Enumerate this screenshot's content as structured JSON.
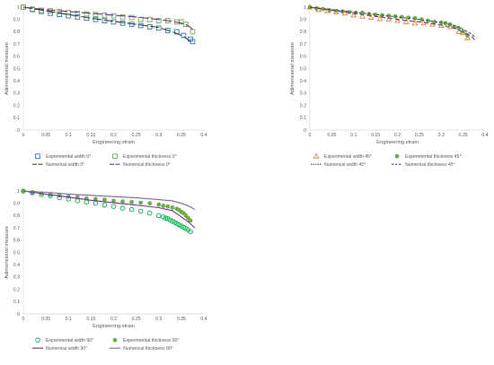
{
  "chart_data": [
    {
      "type": "scatter",
      "xlabel": "Engineering strain",
      "ylabel": "Adimensional measure",
      "xlim": [
        0,
        0.4
      ],
      "ylim": [
        0,
        1
      ],
      "xticks": [
        "0",
        "0.05",
        "0.1",
        "0.15",
        "0.2",
        "0.25",
        "0.3",
        "0.35",
        "0.4"
      ],
      "yticks": [
        "0",
        "0.1",
        "0.2",
        "0.3",
        "0.4",
        "0.5",
        "0.6",
        "0.7",
        "0.8",
        "0.9",
        "1"
      ],
      "grid": false,
      "legend_position": "bottom",
      "series": [
        {
          "name": "Experimental width 0°",
          "kind": "marker",
          "marker": "square",
          "color": "#2E75B6",
          "x": [
            0,
            0.02,
            0.04,
            0.06,
            0.08,
            0.1,
            0.12,
            0.14,
            0.16,
            0.18,
            0.2,
            0.22,
            0.24,
            0.26,
            0.28,
            0.3,
            0.32,
            0.34,
            0.355,
            0.37,
            0.375
          ],
          "y": [
            1,
            0.98,
            0.965,
            0.95,
            0.94,
            0.93,
            0.92,
            0.91,
            0.9,
            0.89,
            0.88,
            0.87,
            0.86,
            0.85,
            0.84,
            0.83,
            0.81,
            0.8,
            0.77,
            0.74,
            0.72
          ]
        },
        {
          "name": "Experimental thickness 0°",
          "kind": "marker",
          "marker": "square",
          "color": "#70AD47",
          "x": [
            0,
            0.02,
            0.04,
            0.06,
            0.08,
            0.1,
            0.12,
            0.14,
            0.16,
            0.18,
            0.2,
            0.22,
            0.24,
            0.26,
            0.28,
            0.3,
            0.32,
            0.34,
            0.35,
            0.36,
            0.375
          ],
          "y": [
            1,
            0.985,
            0.975,
            0.97,
            0.965,
            0.955,
            0.95,
            0.945,
            0.94,
            0.935,
            0.93,
            0.92,
            0.915,
            0.9,
            0.9,
            0.89,
            0.89,
            0.88,
            0.88,
            0.86,
            0.8
          ]
        },
        {
          "name": "Numerical width 0°",
          "kind": "line",
          "dash": "10 3",
          "color": "#404040",
          "x": [
            0,
            0.05,
            0.1,
            0.15,
            0.2,
            0.25,
            0.3,
            0.33,
            0.35,
            0.36,
            0.37
          ],
          "y": [
            1,
            0.97,
            0.94,
            0.91,
            0.885,
            0.86,
            0.835,
            0.8,
            0.77,
            0.75,
            0.72
          ]
        },
        {
          "name": "Numerical thickness 0°",
          "kind": "line",
          "dash": "10 3",
          "color": "#7030A0",
          "x": [
            0,
            0.05,
            0.1,
            0.15,
            0.2,
            0.25,
            0.3,
            0.33,
            0.35,
            0.365,
            0.375
          ],
          "y": [
            1,
            0.98,
            0.965,
            0.95,
            0.935,
            0.92,
            0.9,
            0.885,
            0.87,
            0.85,
            0.82
          ]
        }
      ],
      "legend_layout": [
        [
          0,
          1
        ],
        [
          2,
          3
        ]
      ]
    },
    {
      "type": "scatter",
      "xlabel": "Engineering strain",
      "ylabel": "Adimensional measure",
      "xlim": [
        0,
        0.4
      ],
      "ylim": [
        0,
        1
      ],
      "xticks": [
        "0",
        "0.05",
        "0.1",
        "0.15",
        "0.2",
        "0.25",
        "0.3",
        "0.35",
        "0.4"
      ],
      "yticks": [
        "0",
        "0.1",
        "0.2",
        "0.3",
        "0.4",
        "0.5",
        "0.6",
        "0.7",
        "0.8",
        "0.9",
        "1"
      ],
      "grid": false,
      "legend_position": "bottom",
      "series": [
        {
          "name": "Experimental width 45°",
          "kind": "marker",
          "marker": "triangle",
          "color": "#ED7D31",
          "x": [
            0,
            0.02,
            0.04,
            0.06,
            0.08,
            0.1,
            0.12,
            0.14,
            0.16,
            0.18,
            0.2,
            0.22,
            0.24,
            0.26,
            0.28,
            0.3,
            0.32,
            0.34,
            0.35,
            0.36
          ],
          "y": [
            1,
            0.98,
            0.97,
            0.96,
            0.95,
            0.935,
            0.925,
            0.915,
            0.905,
            0.9,
            0.89,
            0.88,
            0.87,
            0.87,
            0.86,
            0.85,
            0.84,
            0.8,
            0.79,
            0.75
          ]
        },
        {
          "name": "Experimental thickness 45°",
          "kind": "marker",
          "marker": "circle-filled",
          "color": "#70AD47",
          "x": [
            0,
            0.015,
            0.03,
            0.045,
            0.06,
            0.075,
            0.09,
            0.105,
            0.12,
            0.135,
            0.15,
            0.165,
            0.18,
            0.195,
            0.21,
            0.225,
            0.24,
            0.255,
            0.27,
            0.285,
            0.3,
            0.31,
            0.32,
            0.33,
            0.34,
            0.35,
            0.36
          ],
          "y": [
            1,
            0.99,
            0.985,
            0.975,
            0.97,
            0.965,
            0.96,
            0.955,
            0.955,
            0.945,
            0.94,
            0.935,
            0.93,
            0.925,
            0.92,
            0.915,
            0.91,
            0.9,
            0.89,
            0.88,
            0.875,
            0.87,
            0.86,
            0.84,
            0.83,
            0.8,
            0.77
          ]
        },
        {
          "name": "Numerical width 45°",
          "kind": "line",
          "dash": "3 2",
          "color": "#44546A",
          "x": [
            0,
            0.05,
            0.1,
            0.15,
            0.2,
            0.25,
            0.3,
            0.33,
            0.35,
            0.37,
            0.38
          ],
          "y": [
            1,
            0.98,
            0.96,
            0.94,
            0.92,
            0.9,
            0.875,
            0.85,
            0.82,
            0.78,
            0.75
          ]
        },
        {
          "name": "Numerical thickness 45°",
          "kind": "line",
          "dash": "5 3",
          "color": "#7030A0",
          "x": [
            0,
            0.05,
            0.1,
            0.15,
            0.2,
            0.25,
            0.3,
            0.33,
            0.35,
            0.37,
            0.38
          ],
          "y": [
            1,
            0.975,
            0.95,
            0.925,
            0.9,
            0.88,
            0.855,
            0.83,
            0.8,
            0.76,
            0.72
          ]
        }
      ],
      "legend_layout": [
        [
          0,
          1
        ],
        [
          2,
          3
        ]
      ]
    },
    {
      "type": "scatter",
      "xlabel": "Engineering strain",
      "ylabel": "Adimensional measure",
      "xlim": [
        0,
        0.4
      ],
      "ylim": [
        0,
        1
      ],
      "xticks": [
        "0",
        "0.05",
        "0.1",
        "0.15",
        "0.2",
        "0.25",
        "0.3",
        "0.35",
        "0.4"
      ],
      "yticks": [
        "0",
        "0.1",
        "0.2",
        "0.3",
        "0.4",
        "0.5",
        "0.6",
        "0.7",
        "0.8",
        "0.9",
        "1"
      ],
      "grid": false,
      "legend_position": "bottom",
      "series": [
        {
          "name": "Experimental width 90°",
          "kind": "marker",
          "marker": "circle-open",
          "color": "#00B050",
          "x": [
            0,
            0.02,
            0.04,
            0.06,
            0.08,
            0.1,
            0.12,
            0.14,
            0.16,
            0.18,
            0.2,
            0.22,
            0.24,
            0.26,
            0.28,
            0.3,
            0.31,
            0.315,
            0.32,
            0.325,
            0.33,
            0.335,
            0.34,
            0.345,
            0.35,
            0.355,
            0.36,
            0.365,
            0.37
          ],
          "y": [
            1,
            0.985,
            0.97,
            0.96,
            0.945,
            0.935,
            0.92,
            0.91,
            0.9,
            0.885,
            0.875,
            0.86,
            0.85,
            0.835,
            0.82,
            0.8,
            0.79,
            0.78,
            0.775,
            0.765,
            0.755,
            0.745,
            0.735,
            0.725,
            0.715,
            0.705,
            0.695,
            0.685,
            0.67
          ]
        },
        {
          "name": "Experimental thickness 90°",
          "kind": "marker",
          "marker": "circle-filled",
          "color": "#70AD47",
          "x": [
            0,
            0.02,
            0.04,
            0.06,
            0.08,
            0.1,
            0.12,
            0.14,
            0.16,
            0.18,
            0.2,
            0.22,
            0.24,
            0.26,
            0.28,
            0.3,
            0.31,
            0.32,
            0.33,
            0.34,
            0.345,
            0.35,
            0.355,
            0.36,
            0.365,
            0.37
          ],
          "y": [
            1,
            0.99,
            0.98,
            0.97,
            0.965,
            0.955,
            0.95,
            0.94,
            0.935,
            0.93,
            0.92,
            0.915,
            0.91,
            0.905,
            0.9,
            0.89,
            0.88,
            0.875,
            0.865,
            0.855,
            0.845,
            0.83,
            0.82,
            0.8,
            0.78,
            0.76
          ]
        },
        {
          "name": "Numerical width 90°",
          "kind": "line",
          "dash": "",
          "color": "#7030A0",
          "x": [
            0,
            0.05,
            0.1,
            0.15,
            0.2,
            0.25,
            0.3,
            0.33,
            0.35,
            0.365,
            0.38
          ],
          "y": [
            1,
            0.975,
            0.95,
            0.925,
            0.905,
            0.885,
            0.865,
            0.84,
            0.79,
            0.75,
            0.7
          ]
        },
        {
          "name": "Numerical thickness 90°",
          "kind": "line",
          "dash": "",
          "color": "#8064A2",
          "x": [
            0,
            0.05,
            0.1,
            0.15,
            0.2,
            0.25,
            0.3,
            0.33,
            0.35,
            0.365,
            0.38
          ],
          "y": [
            1,
            0.99,
            0.975,
            0.965,
            0.955,
            0.945,
            0.93,
            0.92,
            0.9,
            0.88,
            0.85
          ]
        }
      ],
      "legend_layout": [
        [
          0,
          1
        ],
        [
          2,
          3
        ]
      ]
    }
  ]
}
